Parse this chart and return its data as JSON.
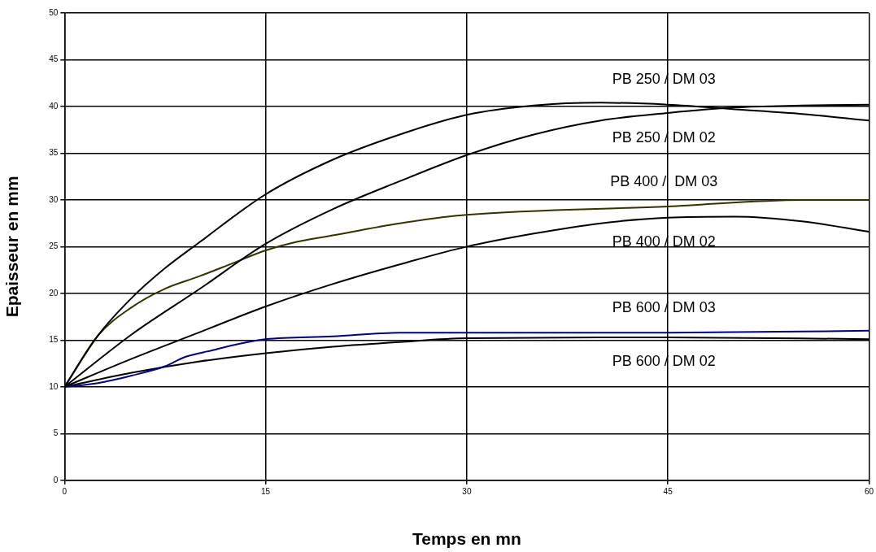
{
  "chart_data": {
    "type": "line",
    "xlabel": "Temps en mn",
    "ylabel": "Epaisseur en mm",
    "xlim": [
      0,
      60
    ],
    "xticks": [
      0,
      15,
      30,
      45,
      60
    ],
    "ylim": [
      0,
      50
    ],
    "yticks": [
      0,
      5,
      10,
      15,
      20,
      25,
      30,
      35,
      40,
      45,
      50
    ],
    "grid": true,
    "legend": false,
    "marker": "none",
    "line_style": "solid",
    "series": [
      {
        "name": "PB 250 / DM 03",
        "color": "#000000",
        "x": [
          0,
          2.5,
          5,
          7.5,
          10,
          15,
          20,
          25,
          30,
          35,
          40,
          45,
          50,
          55,
          60
        ],
        "values": [
          10,
          15.5,
          19.5,
          22.7,
          25.4,
          30.6,
          34.3,
          37,
          39.1,
          40.1,
          40.4,
          40.2,
          39.7,
          39.2,
          38.5
        ]
      },
      {
        "name": "PB 250 / DM 02",
        "color": "#000000",
        "x": [
          0,
          5,
          10,
          15,
          20,
          25,
          30,
          35,
          40,
          45,
          50,
          55,
          60
        ],
        "values": [
          10,
          15.6,
          20.4,
          25.3,
          29,
          32,
          34.8,
          37,
          38.5,
          39.3,
          39.9,
          40.1,
          40.2
        ]
      },
      {
        "name": "PB 400 /  DM 03",
        "color": "#333300",
        "x": [
          0,
          2.5,
          5,
          7.5,
          10,
          12.5,
          15,
          17,
          20,
          25,
          30,
          45,
          55,
          60
        ],
        "values": [
          10,
          15.5,
          18.5,
          20.5,
          21.8,
          23.2,
          24.6,
          25.4,
          26.2,
          27.5,
          28.4,
          29.3,
          30,
          30
        ]
      },
      {
        "name": "PB 400 / DM 02",
        "color": "#000000",
        "x": [
          0,
          5,
          10,
          15,
          20,
          25,
          30,
          35,
          40,
          45,
          50,
          55,
          60
        ],
        "values": [
          10,
          13,
          15.8,
          18.6,
          21,
          23.1,
          25,
          26.4,
          27.5,
          28.1,
          28.2,
          27.7,
          26.6
        ]
      },
      {
        "name": "PB 600 / DM 03",
        "color": "#000080",
        "x": [
          0,
          2.5,
          5,
          7.5,
          9,
          11,
          13,
          15,
          20,
          25,
          30,
          45,
          60
        ],
        "values": [
          10,
          10.4,
          11.2,
          12.2,
          13.2,
          13.9,
          14.6,
          15.1,
          15.4,
          15.8,
          15.8,
          15.8,
          16
        ]
      },
      {
        "name": "PB 600 / DM 02",
        "color": "#000000",
        "x": [
          0,
          5,
          10,
          15,
          20,
          25,
          30,
          45,
          60
        ],
        "values": [
          10,
          11.5,
          12.7,
          13.6,
          14.3,
          14.8,
          15.2,
          15.3,
          15.1
        ]
      }
    ]
  }
}
